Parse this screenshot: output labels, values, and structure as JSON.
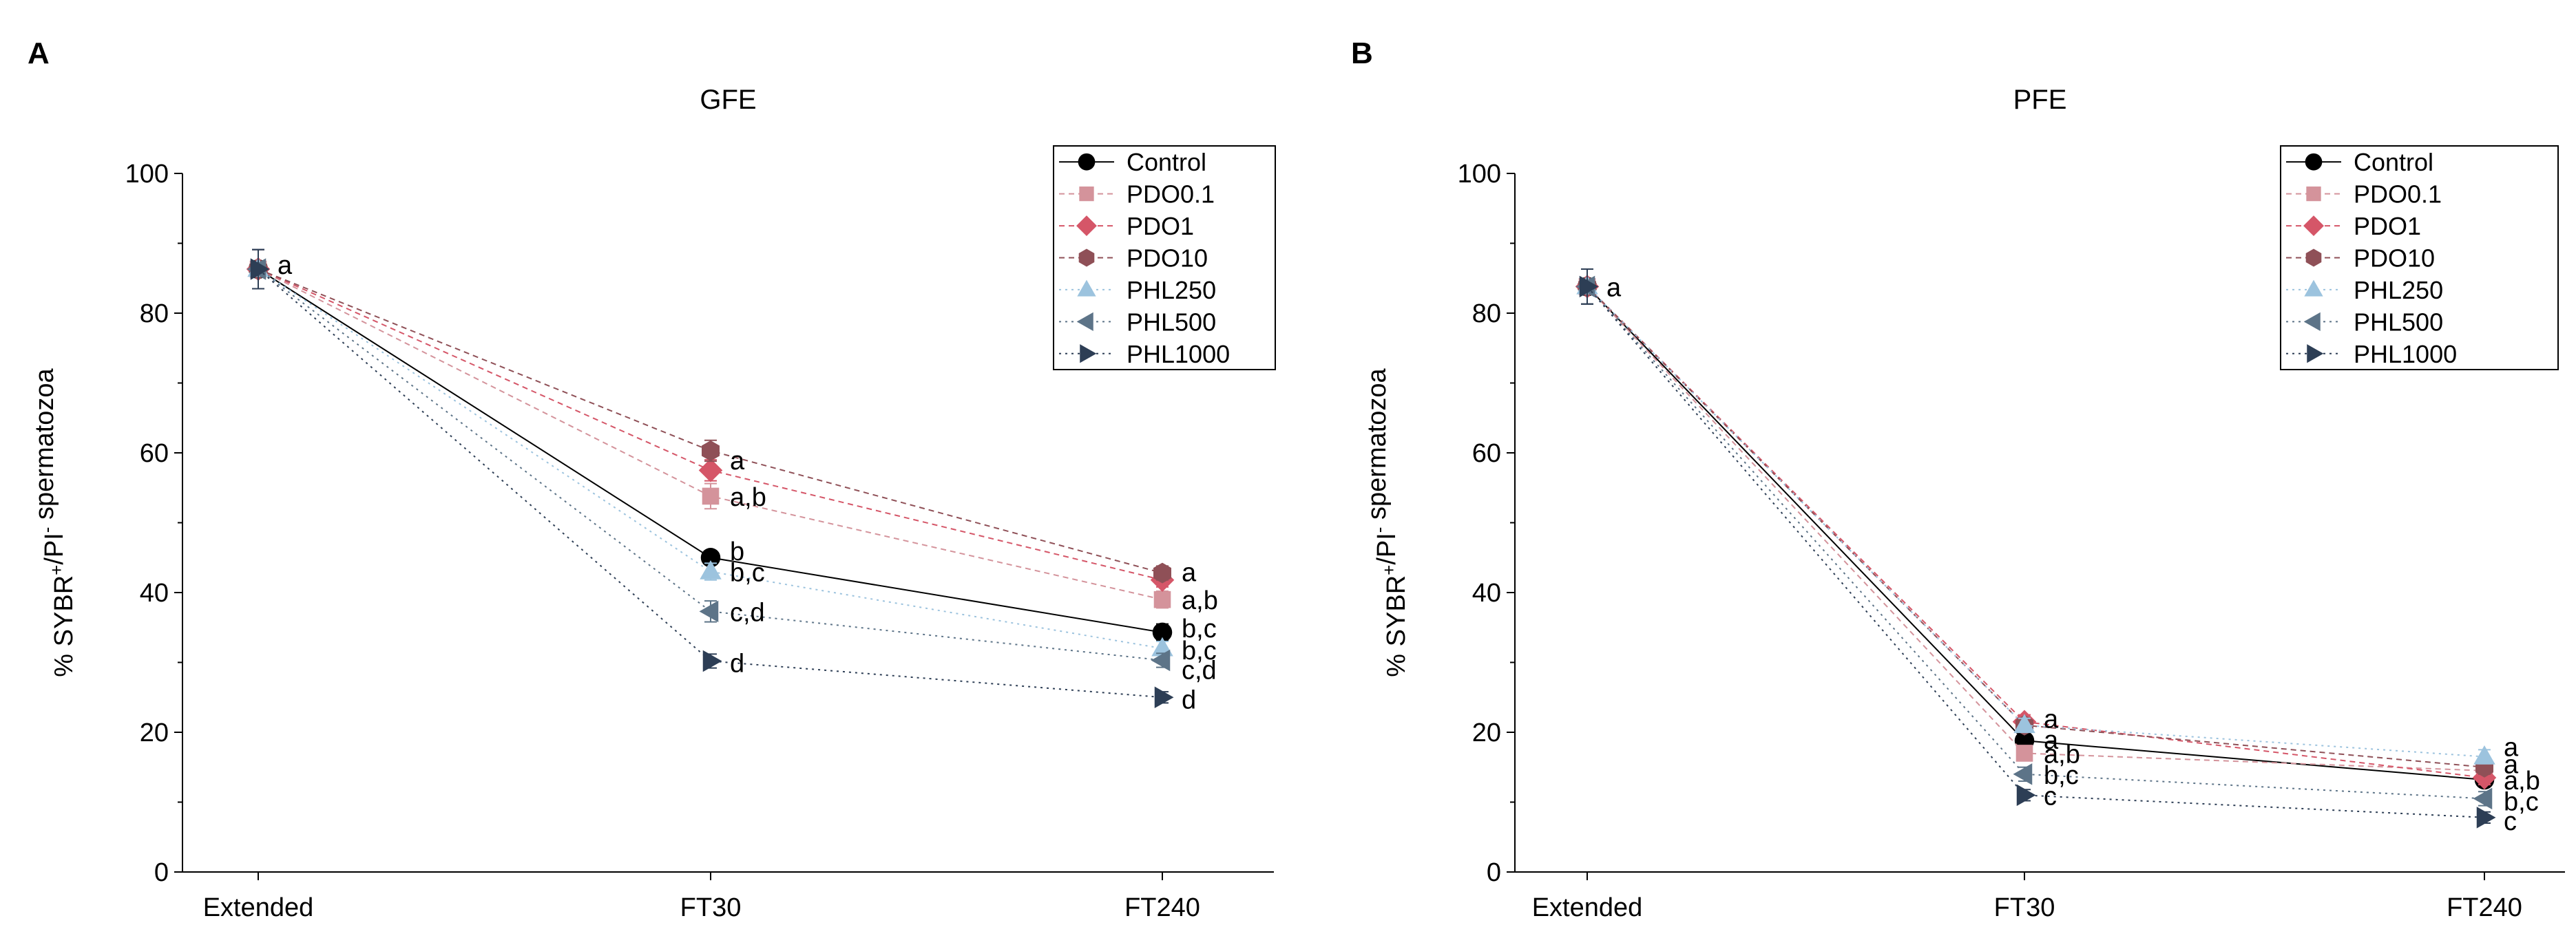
{
  "figure": {
    "ylabel": "% SYBR+/PI- spermatozoa",
    "ylabel_main": "% SYBR",
    "ylabel_sup1": "+",
    "ylabel_mid": "/PI",
    "ylabel_sup2": "-",
    "ylabel_tail": " spermatozoa"
  },
  "chart_data": [
    {
      "type": "line",
      "panel_label": "A",
      "title": "GFE",
      "xlabel": "",
      "ylabel": "% SYBR+/PI- spermatozoa",
      "categories": [
        "Extended",
        "FT30",
        "FT240"
      ],
      "ylim": [
        0,
        100
      ],
      "yticks": [
        0,
        20,
        40,
        60,
        80,
        100
      ],
      "legend_position": "top-right",
      "series": [
        {
          "name": "Control",
          "values": [
            86.3,
            45.0,
            34.3
          ],
          "errors": [
            2.8,
            1.0,
            1.2
          ],
          "color": "#000000",
          "marker": "circle",
          "dash": "solid"
        },
        {
          "name": "PDO0.1",
          "values": [
            86.3,
            53.8,
            39.0
          ],
          "errors": [
            2.8,
            1.8,
            1.2
          ],
          "color": "#d4939b",
          "marker": "square",
          "dash": "dashed"
        },
        {
          "name": "PDO1",
          "values": [
            86.3,
            57.5,
            41.8
          ],
          "errors": [
            2.8,
            1.5,
            1.0
          ],
          "color": "#d55668",
          "marker": "diamond",
          "dash": "dashed"
        },
        {
          "name": "PDO10",
          "values": [
            86.3,
            60.3,
            42.8
          ],
          "errors": [
            2.8,
            1.5,
            1.0
          ],
          "color": "#8f5057",
          "marker": "hexagon",
          "dash": "dashed"
        },
        {
          "name": "PHL250",
          "values": [
            86.3,
            43.0,
            32.0
          ],
          "errors": [
            2.8,
            1.2,
            1.0
          ],
          "color": "#9cc3de",
          "marker": "triangle-up",
          "dash": "dotted"
        },
        {
          "name": "PHL500",
          "values": [
            86.3,
            37.3,
            30.3
          ],
          "errors": [
            2.8,
            1.5,
            1.0
          ],
          "color": "#5d7488",
          "marker": "triangle-left",
          "dash": "dotted"
        },
        {
          "name": "PHL1000",
          "values": [
            86.3,
            30.2,
            25.0
          ],
          "errors": [
            2.8,
            1.0,
            0.8
          ],
          "color": "#2d3e55",
          "marker": "triangle-right",
          "dash": "dotted"
        }
      ],
      "annotations": [
        {
          "category": "Extended",
          "value": 87.0,
          "text": "a"
        },
        {
          "category": "FT30",
          "value": 59.0,
          "text": "a"
        },
        {
          "category": "FT30",
          "value": 53.8,
          "text": "a,b"
        },
        {
          "category": "FT30",
          "value": 46.0,
          "text": "b"
        },
        {
          "category": "FT30",
          "value": 43.0,
          "text": "b,c"
        },
        {
          "category": "FT30",
          "value": 37.3,
          "text": "c,d"
        },
        {
          "category": "FT30",
          "value": 30.0,
          "text": "d"
        },
        {
          "category": "FT240",
          "value": 43.0,
          "text": "a"
        },
        {
          "category": "FT240",
          "value": 39.0,
          "text": "a,b"
        },
        {
          "category": "FT240",
          "value": 35.0,
          "text": "b,c"
        },
        {
          "category": "FT240",
          "value": 31.8,
          "text": "b,c"
        },
        {
          "category": "FT240",
          "value": 29.0,
          "text": "c,d"
        },
        {
          "category": "FT240",
          "value": 24.8,
          "text": "d"
        }
      ]
    },
    {
      "type": "line",
      "panel_label": "B",
      "title": "PFE",
      "xlabel": "",
      "ylabel": "% SYBR+/PI- spermatozoa",
      "categories": [
        "Extended",
        "FT30",
        "FT240"
      ],
      "ylim": [
        0,
        100
      ],
      "yticks": [
        0,
        20,
        40,
        60,
        80,
        100
      ],
      "legend_position": "top-right",
      "series": [
        {
          "name": "Control",
          "values": [
            83.8,
            18.8,
            13.2
          ],
          "errors": [
            2.5,
            1.0,
            1.0
          ],
          "color": "#000000",
          "marker": "circle",
          "dash": "solid"
        },
        {
          "name": "PDO0.1",
          "values": [
            83.8,
            17.0,
            14.5
          ],
          "errors": [
            2.5,
            1.0,
            1.0
          ],
          "color": "#d4939b",
          "marker": "square",
          "dash": "dashed"
        },
        {
          "name": "PDO1",
          "values": [
            83.8,
            21.5,
            13.5
          ],
          "errors": [
            2.5,
            1.0,
            1.0
          ],
          "color": "#d55668",
          "marker": "diamond",
          "dash": "dashed"
        },
        {
          "name": "PDO10",
          "values": [
            83.8,
            21.0,
            15.0
          ],
          "errors": [
            2.5,
            1.0,
            1.0
          ],
          "color": "#8f5057",
          "marker": "hexagon",
          "dash": "dashed"
        },
        {
          "name": "PHL250",
          "values": [
            83.8,
            21.0,
            16.5
          ],
          "errors": [
            2.5,
            1.0,
            1.0
          ],
          "color": "#9cc3de",
          "marker": "triangle-up",
          "dash": "dotted"
        },
        {
          "name": "PHL500",
          "values": [
            83.8,
            14.0,
            10.5
          ],
          "errors": [
            2.5,
            1.0,
            1.0
          ],
          "color": "#5d7488",
          "marker": "triangle-left",
          "dash": "dotted"
        },
        {
          "name": "PHL1000",
          "values": [
            83.8,
            11.0,
            7.8
          ],
          "errors": [
            2.5,
            0.8,
            0.8
          ],
          "color": "#2d3e55",
          "marker": "triangle-right",
          "dash": "dotted"
        }
      ],
      "annotations": [
        {
          "category": "Extended",
          "value": 83.8,
          "text": "a"
        },
        {
          "category": "FT30",
          "value": 22.0,
          "text": "a"
        },
        {
          "category": "FT30",
          "value": 19.0,
          "text": "a"
        },
        {
          "category": "FT30",
          "value": 17.0,
          "text": "a,b"
        },
        {
          "category": "FT30",
          "value": 14.0,
          "text": "b,c"
        },
        {
          "category": "FT30",
          "value": 11.0,
          "text": "c"
        },
        {
          "category": "FT240",
          "value": 18.0,
          "text": "a"
        },
        {
          "category": "FT240",
          "value": 15.5,
          "text": "a"
        },
        {
          "category": "FT240",
          "value": 13.2,
          "text": "a,b"
        },
        {
          "category": "FT240",
          "value": 10.2,
          "text": "b,c"
        },
        {
          "category": "FT240",
          "value": 7.4,
          "text": "c"
        }
      ]
    }
  ]
}
